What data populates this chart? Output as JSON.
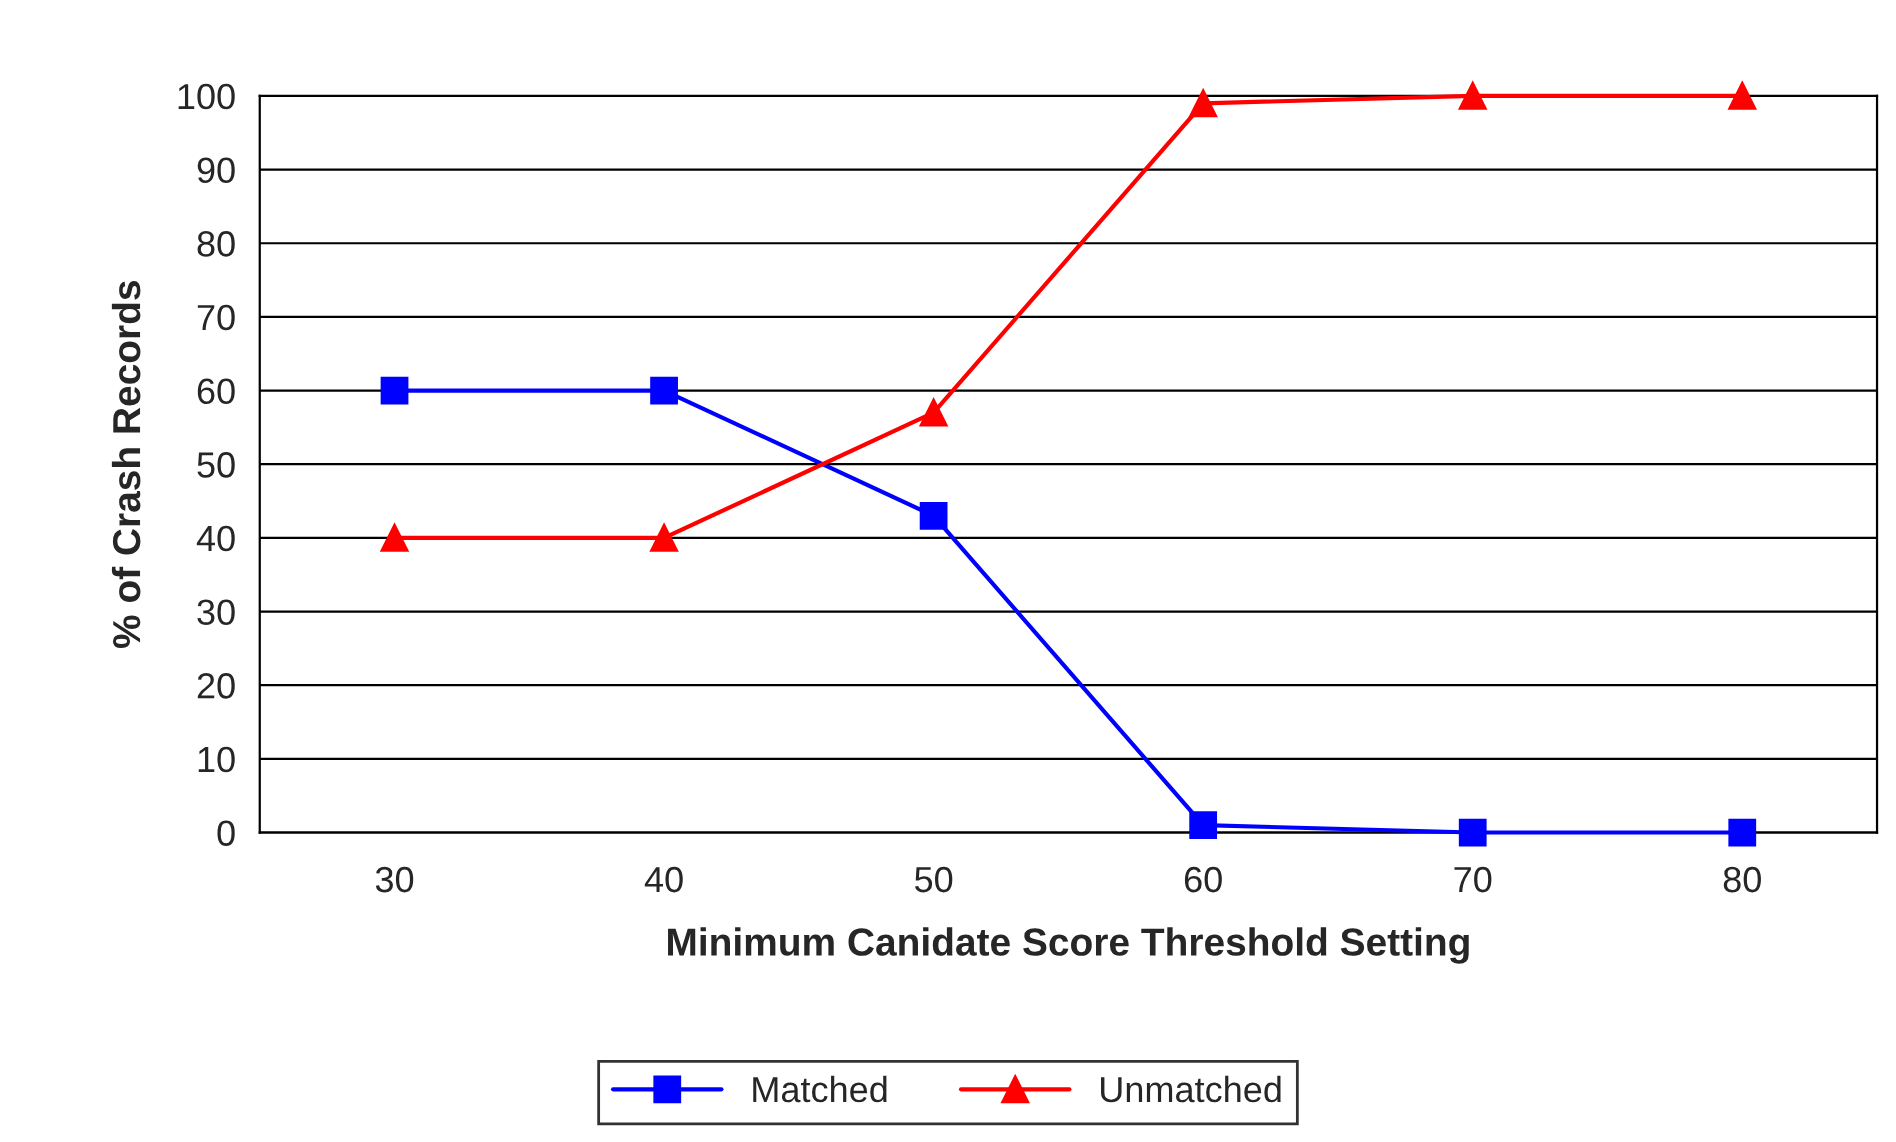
{
  "chart_data": {
    "type": "line",
    "xlabel": "Minimum Canidate Score Threshold Setting",
    "ylabel": "% of Crash Records",
    "categories": [
      "30",
      "40",
      "50",
      "60",
      "70",
      "80"
    ],
    "series": [
      {
        "name": "Matched",
        "color": "#0000ff",
        "marker": "square",
        "values": [
          60,
          60,
          43,
          1,
          0,
          0
        ]
      },
      {
        "name": "Unmatched",
        "color": "#ff0000",
        "marker": "triangle",
        "values": [
          40,
          40,
          57,
          99,
          100,
          100
        ]
      }
    ],
    "ylim": [
      0,
      100
    ],
    "yticks": [
      0,
      10,
      20,
      30,
      40,
      50,
      60,
      70,
      80,
      90,
      100
    ],
    "grid": "y",
    "legend": "bottom",
    "line_style": "solid"
  }
}
